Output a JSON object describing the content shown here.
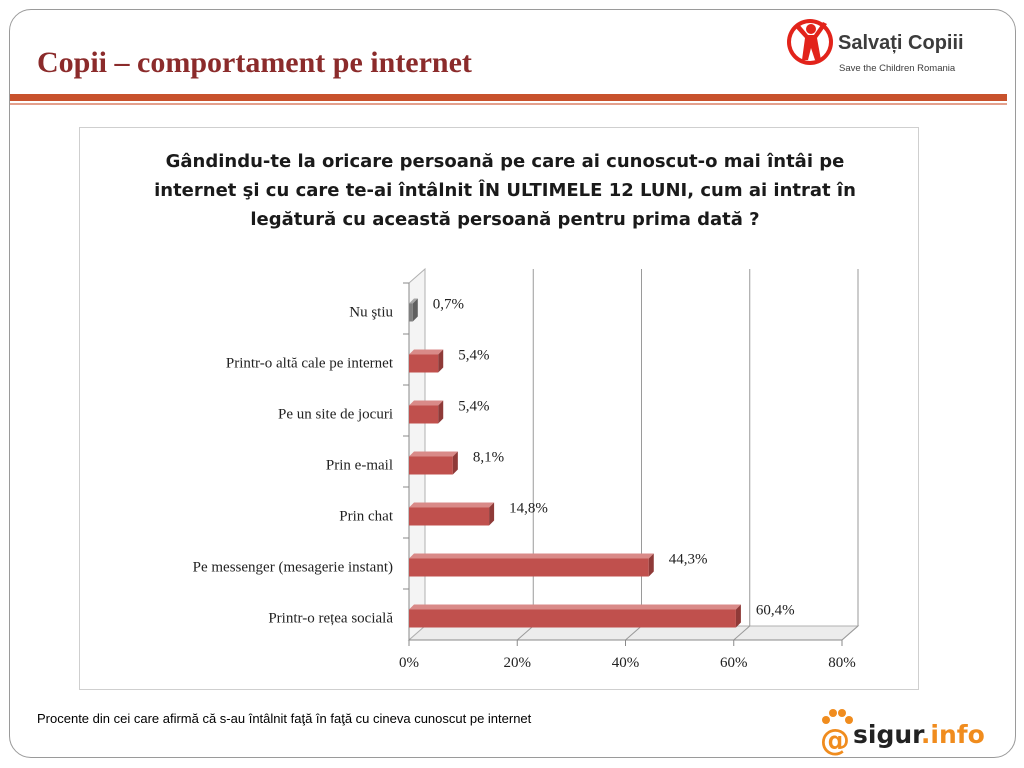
{
  "slide": {
    "title": "Copii – comportament pe internet",
    "footnote": "Procente din cei care afirmă că s-au întâlnit faţă în faţă cu cineva cunoscut pe internet"
  },
  "logos": {
    "top": {
      "name": "Salvați Copiii",
      "subtitle": "Save the Children Romania",
      "icon": "child-figure-icon"
    },
    "bottom": {
      "at": "@",
      "name": "sigur",
      "domain": ".info",
      "icon": "paw-print-icon"
    }
  },
  "colors": {
    "title": "#8b2b2b",
    "rule": "#c8522c",
    "bar": "#c0504d",
    "bar_unknown": "#7f7f7f",
    "logo_red": "#e2231a",
    "logo_orange": "#f08c1e"
  },
  "chart_data": {
    "type": "bar",
    "orientation": "horizontal",
    "title": "Gândindu-te la oricare persoană pe care ai cunoscut-o mai întâi pe internet şi cu care te-ai întâlnit ÎN ULTIMELE 12 LUNI, cum ai intrat în legătură cu această persoană pentru prima dată ?",
    "categories": [
      "Nu ştiu",
      "Printr-o altă cale pe internet",
      "Pe un site de jocuri",
      "Prin e-mail",
      "Prin chat",
      "Pe messenger (mesagerie instant)",
      "Printr-o rețea socială"
    ],
    "values": [
      0.7,
      5.4,
      5.4,
      8.1,
      14.8,
      44.3,
      60.4
    ],
    "data_labels": [
      "0,7%",
      "5,4%",
      "5,4%",
      "8,1%",
      "14,8%",
      "44,3%",
      "60,4%"
    ],
    "xlim": [
      0,
      80
    ],
    "xticks": [
      "0%",
      "20%",
      "40%",
      "60%",
      "80%"
    ],
    "xlabel": "",
    "ylabel": "",
    "grid": true,
    "legend": "none",
    "style": "3d"
  }
}
